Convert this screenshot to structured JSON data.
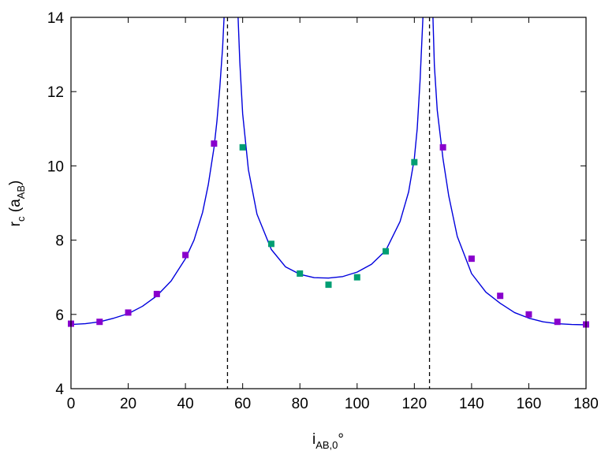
{
  "chart_data": {
    "type": "scatter",
    "title": "",
    "xlabel": {
      "main": "i",
      "sub": "AB,0",
      "suffix": "°"
    },
    "ylabel": {
      "main": "r",
      "sub1": "c",
      "mid": " (a",
      "sub2": "AB",
      "end": ")"
    },
    "xlim": [
      0,
      180
    ],
    "ylim": [
      4,
      14
    ],
    "x_ticks": [
      0,
      20,
      40,
      60,
      80,
      100,
      120,
      140,
      160,
      180
    ],
    "x_tick_labels": [
      "0",
      "20",
      "40",
      "60",
      "80",
      "100",
      "120",
      "140",
      "160",
      "180"
    ],
    "y_ticks": [
      4,
      6,
      8,
      10,
      12,
      14
    ],
    "y_tick_labels": [
      "4",
      "6",
      "8",
      "10",
      "12",
      "14"
    ],
    "grid": false,
    "series": [
      {
        "kind": "points",
        "color": "#8800cc",
        "marker": "square",
        "points": [
          [
            0,
            5.75
          ],
          [
            10,
            5.8
          ],
          [
            20,
            6.05
          ],
          [
            30,
            6.55
          ],
          [
            40,
            7.6
          ],
          [
            50,
            10.6
          ],
          [
            130,
            10.5
          ],
          [
            140,
            7.5
          ],
          [
            150,
            6.5
          ],
          [
            160,
            6.0
          ],
          [
            170,
            5.8
          ],
          [
            180,
            5.73
          ]
        ]
      },
      {
        "kind": "points",
        "color": "#009e73",
        "marker": "square",
        "points": [
          [
            60,
            10.5
          ],
          [
            70,
            7.9
          ],
          [
            80,
            7.1
          ],
          [
            90,
            6.8
          ],
          [
            100,
            7.0
          ],
          [
            110,
            7.7
          ],
          [
            120,
            10.1
          ]
        ]
      },
      {
        "kind": "curve",
        "color": "#0000dd",
        "segments": [
          [
            [
              0,
              5.73
            ],
            [
              5,
              5.75
            ],
            [
              10,
              5.8
            ],
            [
              15,
              5.9
            ],
            [
              20,
              6.02
            ],
            [
              25,
              6.22
            ],
            [
              30,
              6.5
            ],
            [
              35,
              6.9
            ],
            [
              40,
              7.5
            ],
            [
              43,
              8.0
            ],
            [
              46,
              8.75
            ],
            [
              48,
              9.5
            ],
            [
              50,
              10.5
            ],
            [
              51,
              11.2
            ],
            [
              52,
              12.1
            ],
            [
              53,
              13.2
            ],
            [
              53.5,
              14.0
            ]
          ],
          [
            [
              58.4,
              14.0
            ],
            [
              59,
              12.8
            ],
            [
              60,
              11.4
            ],
            [
              62,
              9.9
            ],
            [
              65,
              8.7
            ],
            [
              70,
              7.75
            ],
            [
              75,
              7.28
            ],
            [
              80,
              7.08
            ],
            [
              85,
              6.99
            ],
            [
              90,
              6.98
            ],
            [
              95,
              7.02
            ],
            [
              100,
              7.14
            ],
            [
              105,
              7.35
            ],
            [
              110,
              7.72
            ],
            [
              115,
              8.5
            ],
            [
              118,
              9.3
            ],
            [
              120,
              10.2
            ],
            [
              121,
              11.0
            ],
            [
              122,
              12.3
            ],
            [
              123,
              14.0
            ]
          ],
          [
            [
              126.5,
              14.0
            ],
            [
              127,
              12.7
            ],
            [
              128,
              11.5
            ],
            [
              130,
              10.2
            ],
            [
              132,
              9.2
            ],
            [
              135,
              8.1
            ],
            [
              140,
              7.1
            ],
            [
              145,
              6.6
            ],
            [
              150,
              6.3
            ],
            [
              155,
              6.05
            ],
            [
              160,
              5.9
            ],
            [
              165,
              5.8
            ],
            [
              170,
              5.75
            ],
            [
              175,
              5.73
            ],
            [
              180,
              5.72
            ]
          ]
        ]
      },
      {
        "kind": "vline",
        "color": "#000000",
        "dashed": true,
        "x_values": [
          54.7,
          125.3
        ]
      }
    ]
  }
}
